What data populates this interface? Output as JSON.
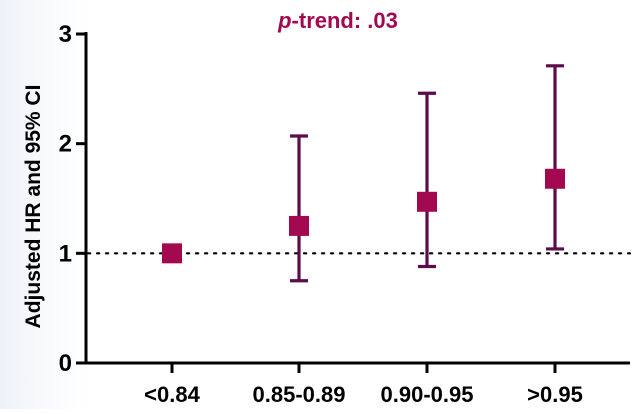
{
  "chart_data": {
    "type": "scatter",
    "title": "",
    "xlabel": "",
    "ylabel": "Adjusted HR and 95% CI",
    "annotation": {
      "italic_part": "p",
      "rest": "-trend: .03"
    },
    "categories": [
      "<0.84",
      "0.85-0.89",
      "0.90-0.95",
      ">0.95"
    ],
    "series": [
      {
        "estimate": [
          1.0,
          1.25,
          1.47,
          1.68
        ],
        "ci_low": [
          null,
          0.75,
          0.88,
          1.04
        ],
        "ci_high": [
          null,
          2.07,
          2.46,
          2.71
        ]
      }
    ],
    "reference_line": 1,
    "ylim": [
      0,
      3
    ],
    "yticks": [
      "0",
      "1",
      "2",
      "3"
    ],
    "grid": false,
    "legend": "none",
    "colors": {
      "marker": "#a3094f",
      "errorbar": "#5c0b4c",
      "annotation": "#a3094f",
      "axis": "#000000"
    }
  }
}
